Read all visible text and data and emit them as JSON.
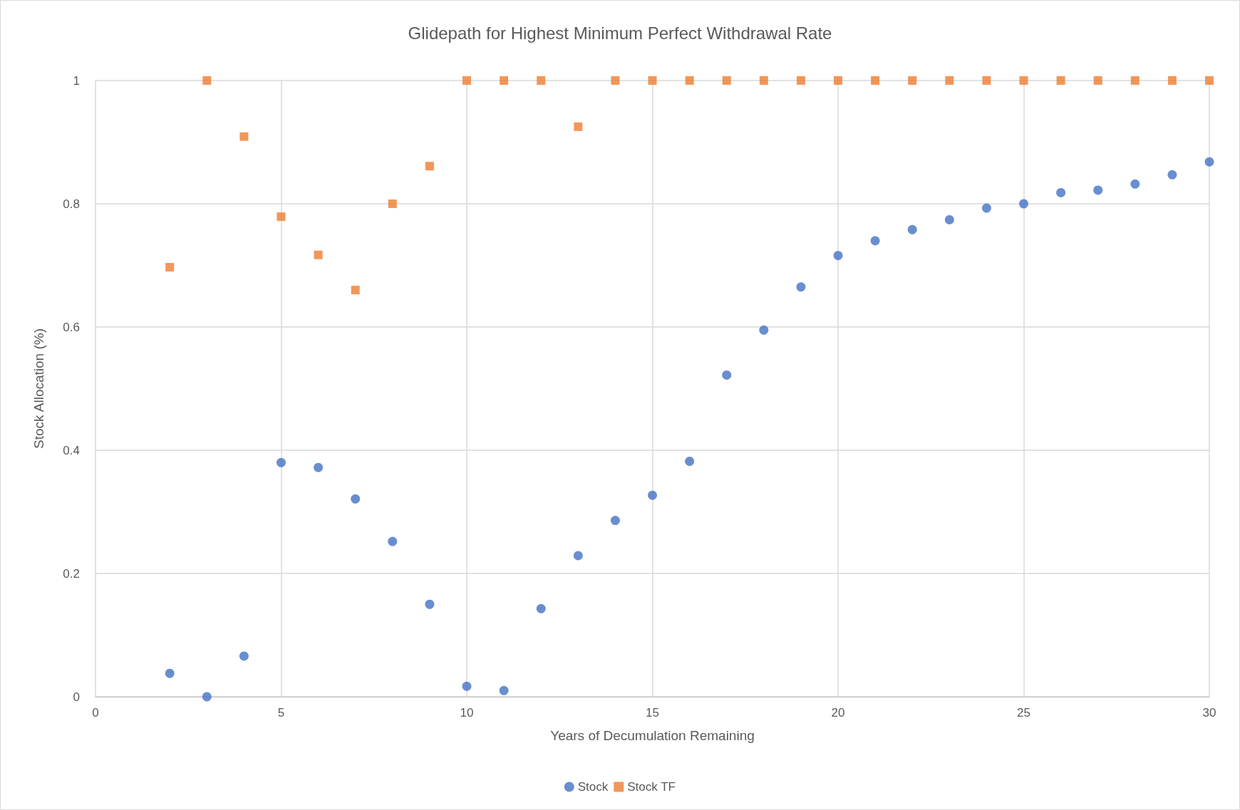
{
  "chart_data": {
    "type": "scatter",
    "title": "Glidepath for Highest Minimum Perfect Withdrawal Rate",
    "xlabel": "Years of Decumulation Remaining",
    "ylabel": "Stock Allocation (%)",
    "x": [
      2,
      3,
      4,
      5,
      6,
      7,
      8,
      9,
      10,
      11,
      12,
      13,
      14,
      15,
      16,
      17,
      18,
      19,
      20,
      21,
      22,
      23,
      24,
      25,
      26,
      27,
      28,
      29,
      30
    ],
    "series": [
      {
        "name": "Stock",
        "color": "#4472c4",
        "marker": "circle",
        "values": [
          0.038,
          0,
          0.066,
          0.38,
          0.372,
          0.321,
          0.252,
          0.15,
          0.017,
          0.01,
          0.143,
          0.229,
          0.286,
          0.327,
          0.382,
          0.522,
          0.595,
          0.665,
          0.716,
          0.74,
          0.758,
          0.774,
          0.793,
          0.8,
          0.818,
          0.822,
          0.832,
          0.847,
          0.868
        ]
      },
      {
        "name": "Stock TF",
        "color": "#ed7d31",
        "marker": "square",
        "values": [
          0.697,
          1,
          0.909,
          0.779,
          0.717,
          0.66,
          0.8,
          0.861,
          1,
          1,
          1,
          0.925,
          1,
          1,
          1,
          1,
          1,
          1,
          1,
          1,
          1,
          1,
          1,
          1,
          1,
          1,
          1,
          1,
          1
        ]
      }
    ],
    "xlim": [
      0,
      30
    ],
    "xticks": [
      0,
      5,
      10,
      15,
      20,
      25,
      30
    ],
    "ylim": [
      0,
      1
    ],
    "yticks": [
      0,
      0.2,
      0.4,
      0.6,
      0.8,
      1
    ],
    "grid": true,
    "legend": "bottom"
  }
}
